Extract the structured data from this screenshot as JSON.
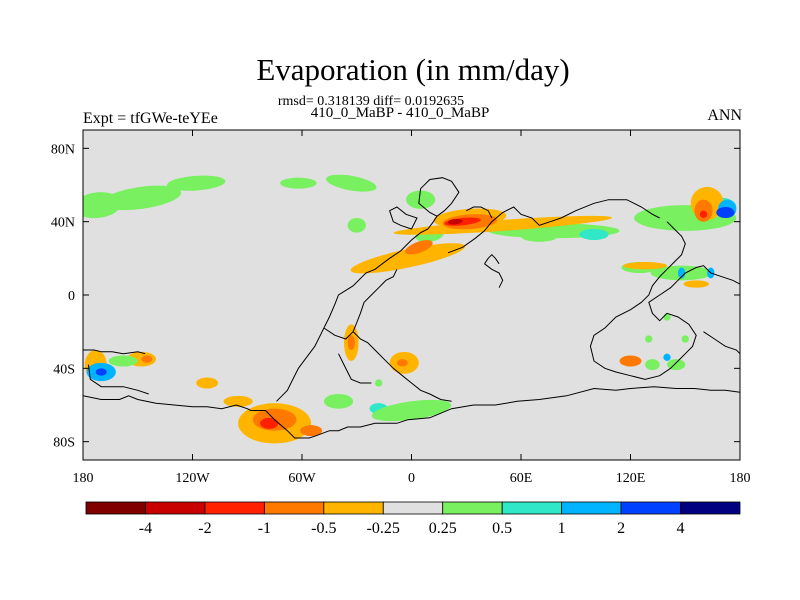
{
  "header": {
    "title": "Evaporation (in mm/day)",
    "stats": "rmsd= 0.318139 diff= 0.0192635",
    "experiments": "410_0_MaBP - 410_0_MaBP",
    "left_label": "Expt = tfGWe-teYEe",
    "right_label": "ANN"
  },
  "map": {
    "background_color": "#e0e0e0",
    "projection": "cylindrical equidistant",
    "lon_range": [
      -180,
      180
    ],
    "lat_range": [
      -90,
      90
    ],
    "x_ticks": [
      {
        "lon": -180,
        "label": "180"
      },
      {
        "lon": -120,
        "label": "120W"
      },
      {
        "lon": -60,
        "label": "60W"
      },
      {
        "lon": 0,
        "label": "0"
      },
      {
        "lon": 60,
        "label": "60E"
      },
      {
        "lon": 120,
        "label": "120E"
      },
      {
        "lon": 180,
        "label": "180"
      }
    ],
    "y_ticks": [
      {
        "lat": 80,
        "label": "80N"
      },
      {
        "lat": 40,
        "label": "40N"
      },
      {
        "lat": 0,
        "label": "0"
      },
      {
        "lat": -40,
        "label": "40S"
      },
      {
        "lat": -80,
        "label": "80S"
      }
    ]
  },
  "colorbar": {
    "colors": [
      "#800000",
      "#c80000",
      "#ff2000",
      "#ff7800",
      "#ffb400",
      "#e0e0e0",
      "#78f060",
      "#30e8c8",
      "#00b4ff",
      "#0040ff",
      "#000080"
    ],
    "labels": [
      "-4",
      "-2",
      "-1",
      "-0.5",
      "-0.25",
      "0.25",
      "0.5",
      "1",
      "2",
      "4"
    ]
  },
  "anomalies": [
    {
      "level": 6,
      "lon": -172,
      "lat": 49,
      "rx": 13,
      "ry": 7,
      "rot": -6
    },
    {
      "level": 6,
      "lon": -148,
      "lat": 53,
      "rx": 22,
      "ry": 6,
      "rot": -8
    },
    {
      "level": 6,
      "lon": -118,
      "lat": 61,
      "rx": 16,
      "ry": 4,
      "rot": -4
    },
    {
      "level": 6,
      "lon": -62,
      "lat": 61,
      "rx": 10,
      "ry": 3,
      "rot": 0
    },
    {
      "level": 6,
      "lon": -33,
      "lat": 61,
      "rx": 14,
      "ry": 4,
      "rot": 10
    },
    {
      "level": 6,
      "lon": -30,
      "lat": 38,
      "rx": 5,
      "ry": 4,
      "rot": 0
    },
    {
      "level": 6,
      "lon": 5,
      "lat": 52,
      "rx": 8,
      "ry": 5,
      "rot": 0
    },
    {
      "level": 6,
      "lon": 78,
      "lat": 35,
      "rx": 36,
      "ry": 4,
      "rot": 0
    },
    {
      "level": 6,
      "lon": 150,
      "lat": 42,
      "rx": 28,
      "ry": 7,
      "rot": 0
    },
    {
      "level": 7,
      "lon": 100,
      "lat": 33,
      "rx": 8,
      "ry": 3,
      "rot": 0
    },
    {
      "level": 7,
      "lon": 170,
      "lat": 48,
      "rx": 8,
      "ry": 5,
      "rot": 0
    },
    {
      "level": 6,
      "lon": 125,
      "lat": 15,
      "rx": 10,
      "ry": 3,
      "rot": 0
    },
    {
      "level": 6,
      "lon": 148,
      "lat": 12,
      "rx": 17,
      "ry": 4,
      "rot": 0
    },
    {
      "level": 4,
      "lon": 128,
      "lat": 16,
      "rx": 12,
      "ry": 2,
      "rot": 0
    },
    {
      "level": 8,
      "lon": 148,
      "lat": 12,
      "rx": 2,
      "ry": 3,
      "rot": 0
    },
    {
      "level": 8,
      "lon": 164,
      "lat": 12,
      "rx": 2,
      "ry": 3,
      "rot": 0
    },
    {
      "level": 4,
      "lon": 156,
      "lat": 6,
      "rx": 7,
      "ry": 2,
      "rot": 0
    },
    {
      "level": 4,
      "lon": 162,
      "lat": 50,
      "rx": 9,
      "ry": 9,
      "rot": 0
    },
    {
      "level": 3,
      "lon": 160,
      "lat": 46,
      "rx": 5,
      "ry": 6,
      "rot": 0
    },
    {
      "level": 2,
      "lon": 160,
      "lat": 44,
      "rx": 2,
      "ry": 2,
      "rot": 0
    },
    {
      "level": 8,
      "lon": 173,
      "lat": 47,
      "rx": 5,
      "ry": 5,
      "rot": 0
    },
    {
      "level": 9,
      "lon": 172,
      "lat": 45,
      "rx": 5,
      "ry": 3,
      "rot": 0
    },
    {
      "level": 6,
      "lon": 10,
      "lat": 33,
      "rx": 8,
      "ry": 4,
      "rot": -10
    },
    {
      "level": 6,
      "lon": 70,
      "lat": 32,
      "rx": 10,
      "ry": 3,
      "rot": 0
    },
    {
      "level": 4,
      "lon": 50,
      "lat": 38,
      "rx": 60,
      "ry": 3,
      "rot": -4
    },
    {
      "level": 4,
      "lon": 32,
      "lat": 42,
      "rx": 20,
      "ry": 5,
      "rot": -4
    },
    {
      "level": 3,
      "lon": 32,
      "lat": 40,
      "rx": 15,
      "ry": 4,
      "rot": -4
    },
    {
      "level": 2,
      "lon": 28,
      "lat": 40,
      "rx": 10,
      "ry": 2,
      "rot": -6
    },
    {
      "level": 1,
      "lon": 24,
      "lat": 40,
      "rx": 4,
      "ry": 1.5,
      "rot": -6
    },
    {
      "level": 4,
      "lon": -2,
      "lat": 20,
      "rx": 32,
      "ry": 5,
      "rot": -12
    },
    {
      "level": 3,
      "lon": 4,
      "lat": 26,
      "rx": 8,
      "ry": 3,
      "rot": -20
    },
    {
      "level": 4,
      "lon": -33,
      "lat": -26,
      "rx": 4,
      "ry": 10,
      "rot": 0
    },
    {
      "level": 3,
      "lon": -33,
      "lat": -26,
      "rx": 2,
      "ry": 4,
      "rot": 0
    },
    {
      "level": 4,
      "lon": -4,
      "lat": -37,
      "rx": 8,
      "ry": 6,
      "rot": 0
    },
    {
      "level": 3,
      "lon": -5,
      "lat": -37,
      "rx": 3,
      "ry": 2,
      "rot": 0
    },
    {
      "level": 4,
      "lon": -148,
      "lat": -35,
      "rx": 8,
      "ry": 4,
      "rot": 0
    },
    {
      "level": 3,
      "lon": -145,
      "lat": -35,
      "rx": 3,
      "ry": 2,
      "rot": 0
    },
    {
      "level": 4,
      "lon": -173,
      "lat": -38,
      "rx": 6,
      "ry": 8,
      "rot": 0
    },
    {
      "level": 8,
      "lon": -170,
      "lat": -42,
      "rx": 8,
      "ry": 5,
      "rot": 0
    },
    {
      "level": 9,
      "lon": -170,
      "lat": -42,
      "rx": 3,
      "ry": 2,
      "rot": 0
    },
    {
      "level": 6,
      "lon": -158,
      "lat": -36,
      "rx": 8,
      "ry": 3,
      "rot": 0
    },
    {
      "level": 4,
      "lon": -112,
      "lat": -48,
      "rx": 6,
      "ry": 3,
      "rot": 0
    },
    {
      "level": 4,
      "lon": -95,
      "lat": -58,
      "rx": 8,
      "ry": 3,
      "rot": 0
    },
    {
      "level": 6,
      "lon": -40,
      "lat": -58,
      "rx": 8,
      "ry": 4,
      "rot": 0
    },
    {
      "level": 7,
      "lon": -18,
      "lat": -62,
      "rx": 5,
      "ry": 3,
      "rot": 0
    },
    {
      "level": 6,
      "lon": 0,
      "lat": -63,
      "rx": 22,
      "ry": 5,
      "rot": -8
    },
    {
      "level": 4,
      "lon": -75,
      "lat": -70,
      "rx": 20,
      "ry": 11,
      "rot": 0
    },
    {
      "level": 3,
      "lon": -75,
      "lat": -68,
      "rx": 12,
      "ry": 6,
      "rot": 0
    },
    {
      "level": 2,
      "lon": -78,
      "lat": -70,
      "rx": 5,
      "ry": 3,
      "rot": 0
    },
    {
      "level": 3,
      "lon": -55,
      "lat": -74,
      "rx": 6,
      "ry": 3,
      "rot": 0
    },
    {
      "level": 6,
      "lon": 132,
      "lat": -38,
      "rx": 4,
      "ry": 3,
      "rot": 0
    },
    {
      "level": 3,
      "lon": 120,
      "lat": -36,
      "rx": 6,
      "ry": 3,
      "rot": 0
    },
    {
      "level": 6,
      "lon": 145,
      "lat": -38,
      "rx": 5,
      "ry": 3,
      "rot": 0
    },
    {
      "level": 8,
      "lon": 140,
      "lat": -34,
      "rx": 2,
      "ry": 2,
      "rot": 0
    },
    {
      "level": 6,
      "lon": 130,
      "lat": -24,
      "rx": 2,
      "ry": 2,
      "rot": 0
    },
    {
      "level": 6,
      "lon": 150,
      "lat": -24,
      "rx": 2,
      "ry": 2,
      "rot": 0
    },
    {
      "level": 6,
      "lon": 140,
      "lat": -12,
      "rx": 2,
      "ry": 2,
      "rot": 0
    },
    {
      "level": 6,
      "lon": -18,
      "lat": -48,
      "rx": 2,
      "ry": 2,
      "rot": 0
    }
  ],
  "coastlines": [
    [
      [
        -180,
        -55
      ],
      [
        -170,
        -57
      ],
      [
        -160,
        -57
      ],
      [
        -155,
        -55
      ],
      [
        -150,
        -57
      ],
      [
        -140,
        -59
      ],
      [
        -130,
        -60
      ],
      [
        -120,
        -61
      ],
      [
        -112,
        -61
      ],
      [
        -104,
        -62
      ],
      [
        -96,
        -60
      ],
      [
        -90,
        -62
      ],
      [
        -88,
        -63
      ],
      [
        -80,
        -63
      ],
      [
        -75,
        -68
      ],
      [
        -68,
        -74
      ],
      [
        -64,
        -78
      ],
      [
        -56,
        -78
      ],
      [
        -53,
        -77
      ],
      [
        -45,
        -74
      ],
      [
        -40,
        -74
      ],
      [
        -35,
        -72
      ],
      [
        -28,
        -72
      ],
      [
        -20,
        -70
      ],
      [
        -8,
        -70
      ],
      [
        -2,
        -68
      ],
      [
        10,
        -67
      ],
      [
        22,
        -62
      ],
      [
        34,
        -60
      ],
      [
        46,
        -60
      ],
      [
        58,
        -58
      ],
      [
        70,
        -57
      ],
      [
        85,
        -55
      ],
      [
        100,
        -51
      ],
      [
        112,
        -52
      ],
      [
        120,
        -51
      ],
      [
        133,
        -50
      ],
      [
        145,
        -51
      ],
      [
        155,
        -51
      ],
      [
        164,
        -52
      ],
      [
        172,
        -52
      ],
      [
        180,
        -53
      ]
    ],
    [
      [
        -180,
        -30
      ],
      [
        -174,
        -30
      ],
      [
        -170,
        -31
      ],
      [
        -164,
        -31
      ],
      [
        -158,
        -32
      ],
      [
        -150,
        -31
      ],
      [
        -146,
        -32
      ]
    ],
    [
      [
        -177,
        -38
      ],
      [
        -176,
        -46
      ],
      [
        -170,
        -50
      ],
      [
        -158,
        -50
      ],
      [
        -150,
        -52
      ],
      [
        -144,
        -54
      ]
    ],
    [
      [
        -48,
        -18
      ],
      [
        -45,
        -12
      ],
      [
        -42,
        -5
      ],
      [
        -40,
        0
      ],
      [
        -32,
        5
      ],
      [
        -25,
        12
      ],
      [
        -20,
        14
      ],
      [
        -12,
        20
      ],
      [
        -6,
        24
      ],
      [
        0,
        30
      ],
      [
        5,
        34
      ],
      [
        9,
        36
      ],
      [
        12,
        40
      ],
      [
        14,
        43
      ]
    ],
    [
      [
        -32,
        -20
      ],
      [
        -30,
        -15
      ],
      [
        -28,
        -10
      ],
      [
        -26,
        -4
      ],
      [
        -22,
        0
      ],
      [
        -18,
        4
      ],
      [
        -14,
        8
      ],
      [
        -10,
        10
      ],
      [
        -8,
        14
      ]
    ],
    [
      [
        -32,
        -20
      ],
      [
        -28,
        -24
      ],
      [
        -24,
        -26
      ],
      [
        -20,
        -30
      ],
      [
        -15,
        -35
      ],
      [
        -10,
        -40
      ],
      [
        -5,
        -44
      ],
      [
        0,
        -48
      ],
      [
        5,
        -52
      ],
      [
        10,
        -54
      ],
      [
        16,
        -57
      ],
      [
        22,
        -58
      ]
    ],
    [
      [
        -48,
        -18
      ],
      [
        -50,
        -22
      ],
      [
        -53,
        -28
      ],
      [
        -56,
        -32
      ],
      [
        -62,
        -40
      ],
      [
        -66,
        -48
      ],
      [
        -68,
        -52
      ],
      [
        -72,
        -56
      ],
      [
        -74,
        -58
      ]
    ],
    [
      [
        -40,
        -32
      ],
      [
        -38,
        -36
      ],
      [
        -35,
        -42
      ],
      [
        -33,
        -46
      ],
      [
        -28,
        -48
      ],
      [
        -22,
        -48
      ]
    ],
    [
      [
        -48,
        -18
      ],
      [
        -42,
        -22
      ],
      [
        -36,
        -24
      ],
      [
        -32,
        -20
      ]
    ],
    [
      [
        14,
        43
      ],
      [
        18,
        46
      ],
      [
        22,
        50
      ],
      [
        26,
        56
      ],
      [
        22,
        62
      ],
      [
        17,
        64
      ],
      [
        10,
        63
      ],
      [
        5,
        58
      ],
      [
        4,
        50
      ],
      [
        10,
        45
      ],
      [
        14,
        43
      ]
    ],
    [
      [
        -10,
        40
      ],
      [
        -6,
        38
      ],
      [
        0,
        36
      ],
      [
        3,
        42
      ],
      [
        -3,
        44
      ],
      [
        -8,
        48
      ],
      [
        -12,
        46
      ],
      [
        -10,
        40
      ]
    ],
    [
      [
        20,
        23
      ],
      [
        28,
        26
      ],
      [
        35,
        31
      ],
      [
        40,
        35
      ],
      [
        44,
        40
      ],
      [
        50,
        45
      ],
      [
        56,
        48
      ],
      [
        60,
        44
      ],
      [
        66,
        42
      ],
      [
        70,
        38
      ],
      [
        76,
        40
      ],
      [
        82,
        42
      ]
    ],
    [
      [
        82,
        42
      ],
      [
        90,
        46
      ],
      [
        100,
        50
      ],
      [
        108,
        52
      ],
      [
        118,
        52
      ],
      [
        126,
        48
      ],
      [
        132,
        44
      ],
      [
        136,
        42
      ]
    ],
    [
      [
        140,
        40
      ],
      [
        144,
        36
      ],
      [
        148,
        32
      ],
      [
        150,
        28
      ],
      [
        148,
        22
      ],
      [
        144,
        18
      ],
      [
        140,
        14
      ],
      [
        136,
        10
      ]
    ],
    [
      [
        136,
        10
      ],
      [
        132,
        5
      ],
      [
        130,
        0
      ],
      [
        126,
        -4
      ],
      [
        120,
        -8
      ],
      [
        112,
        -12
      ],
      [
        106,
        -18
      ],
      [
        100,
        -22
      ],
      [
        98,
        -28
      ],
      [
        100,
        -36
      ],
      [
        106,
        -40
      ],
      [
        112,
        -42
      ],
      [
        120,
        -44
      ],
      [
        128,
        -46
      ],
      [
        136,
        -44
      ],
      [
        142,
        -40
      ]
    ],
    [
      [
        142,
        -40
      ],
      [
        146,
        -36
      ],
      [
        150,
        -32
      ],
      [
        154,
        -28
      ],
      [
        156,
        -22
      ],
      [
        152,
        -16
      ],
      [
        146,
        -12
      ],
      [
        140,
        -10
      ],
      [
        136,
        -14
      ],
      [
        132,
        -10
      ],
      [
        130,
        -4
      ],
      [
        136,
        0
      ],
      [
        142,
        4
      ],
      [
        146,
        8
      ],
      [
        150,
        12
      ],
      [
        156,
        15
      ],
      [
        160,
        16
      ],
      [
        164,
        12
      ],
      [
        170,
        10
      ],
      [
        176,
        8
      ],
      [
        180,
        6
      ]
    ],
    [
      [
        160,
        -20
      ],
      [
        166,
        -24
      ],
      [
        172,
        -28
      ],
      [
        178,
        -30
      ],
      [
        180,
        -32
      ]
    ],
    [
      [
        40,
        17
      ],
      [
        44,
        14
      ],
      [
        48,
        12
      ],
      [
        50,
        8
      ],
      [
        48,
        4
      ]
    ],
    [
      [
        40,
        17
      ],
      [
        42,
        20
      ],
      [
        44,
        22
      ],
      [
        46,
        20
      ],
      [
        48,
        17
      ]
    ],
    [
      [
        30,
        46
      ],
      [
        34,
        48
      ],
      [
        38,
        48
      ],
      [
        42,
        46
      ],
      [
        44,
        42
      ]
    ]
  ]
}
